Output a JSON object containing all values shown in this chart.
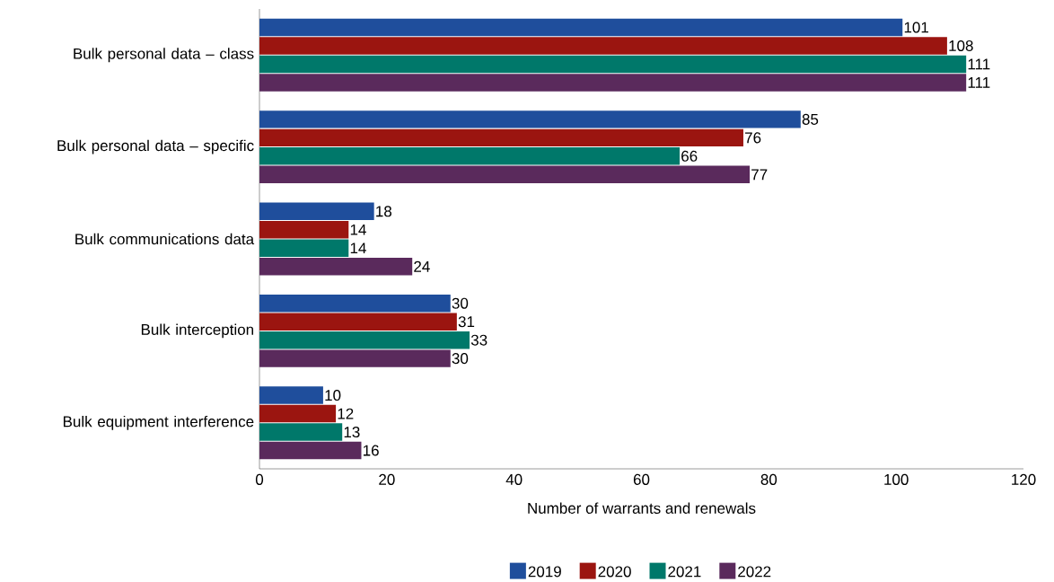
{
  "chart_data": {
    "type": "bar",
    "orientation": "horizontal",
    "xlabel": "Number of warrants and renewals",
    "categories": [
      "Bulk personal data – class",
      "Bulk personal data – specific",
      "Bulk communications data",
      "Bulk interception",
      "Bulk equipment interference"
    ],
    "series": [
      {
        "name": "2019",
        "color": "#1f4e9c",
        "values": [
          101,
          85,
          18,
          30,
          10
        ]
      },
      {
        "name": "2020",
        "color": "#9b1510",
        "values": [
          108,
          76,
          14,
          31,
          12
        ]
      },
      {
        "name": "2021",
        "color": "#00786a",
        "values": [
          111,
          66,
          14,
          33,
          13
        ]
      },
      {
        "name": "2022",
        "color": "#5a2a5c",
        "values": [
          111,
          77,
          24,
          30,
          16
        ]
      }
    ],
    "xlim": [
      0,
      120
    ],
    "xticks": [
      0,
      20,
      40,
      60,
      80,
      100,
      120
    ],
    "data_labels": true,
    "legend": "bottom",
    "grid": false
  }
}
